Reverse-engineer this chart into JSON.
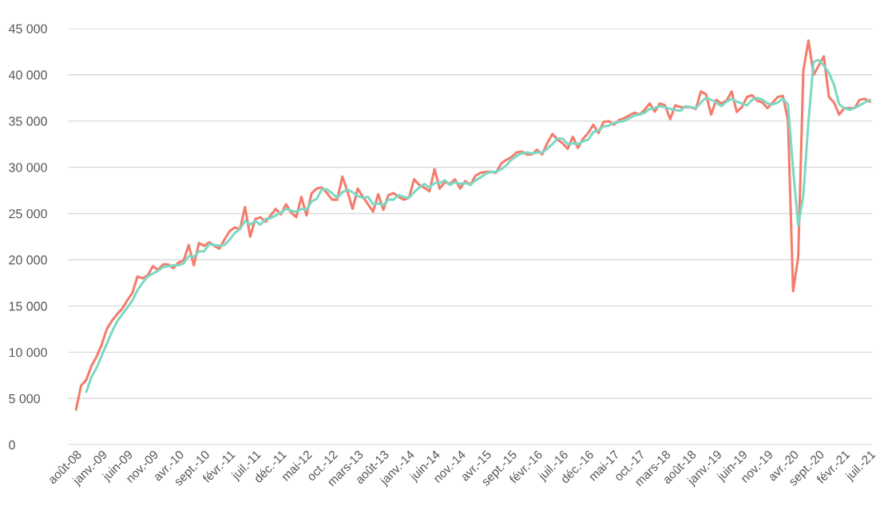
{
  "chart_data": {
    "type": "line",
    "categories": [
      "août-08",
      null,
      null,
      null,
      null,
      "janv.-09",
      null,
      null,
      null,
      null,
      "juin-09",
      null,
      null,
      null,
      null,
      "nov.-09",
      null,
      null,
      null,
      null,
      "avr.-10",
      null,
      null,
      null,
      null,
      "sept.-10",
      null,
      null,
      null,
      null,
      "févr.-11",
      null,
      null,
      null,
      null,
      "juil.-11",
      null,
      null,
      null,
      null,
      "déc.-11",
      null,
      null,
      null,
      null,
      "mai-12",
      null,
      null,
      null,
      null,
      "oct.-12",
      null,
      null,
      null,
      null,
      "mars-13",
      null,
      null,
      null,
      null,
      "août-13",
      null,
      null,
      null,
      null,
      "janv.-14",
      null,
      null,
      null,
      null,
      "juin-14",
      null,
      null,
      null,
      null,
      "nov.-14",
      null,
      null,
      null,
      null,
      "avr.-15",
      null,
      null,
      null,
      null,
      "sept.-15",
      null,
      null,
      null,
      null,
      "févr.-16",
      null,
      null,
      null,
      null,
      "juil.-16",
      null,
      null,
      null,
      null,
      "déc.-16",
      null,
      null,
      null,
      null,
      "mai-17",
      null,
      null,
      null,
      null,
      "oct.-17",
      null,
      null,
      null,
      null,
      "mars-18",
      null,
      null,
      null,
      null,
      "août-18",
      null,
      null,
      null,
      null,
      "janv.-19",
      null,
      null,
      null,
      null,
      "juin-19",
      null,
      null,
      null,
      null,
      "nov.-19",
      null,
      null,
      null,
      null,
      "avr.-20",
      null,
      null,
      null,
      null,
      "sept.-20",
      null,
      null,
      null,
      null,
      "févr.-21",
      null,
      null,
      null,
      null,
      "juil.-21"
    ],
    "series": [
      {
        "color": "#f47c6c",
        "values": [
          3800,
          6400,
          7000,
          8500,
          9500,
          10800,
          12500,
          13400,
          14100,
          14700,
          15600,
          16400,
          18200,
          18000,
          18300,
          19300,
          18900,
          19500,
          19500,
          19100,
          19700,
          19900,
          21600,
          19400,
          21800,
          21500,
          21900,
          21500,
          21200,
          22200,
          23100,
          23500,
          23300,
          25700,
          22500,
          24400,
          24600,
          24100,
          24800,
          25500,
          24900,
          26000,
          25100,
          24600,
          26800,
          24800,
          27200,
          27700,
          27800,
          27200,
          26500,
          26500,
          29000,
          27400,
          25500,
          27700,
          26800,
          26000,
          25200,
          27100,
          25400,
          27000,
          27200,
          26800,
          26500,
          26700,
          28700,
          28100,
          27800,
          27400,
          29800,
          27700,
          28400,
          28200,
          28700,
          27700,
          28500,
          28100,
          29100,
          29400,
          29500,
          29500,
          29400,
          30400,
          30800,
          31100,
          31600,
          31700,
          31400,
          31400,
          31900,
          31400,
          32600,
          33600,
          33000,
          32600,
          32000,
          33300,
          32100,
          33100,
          33700,
          34600,
          33700,
          34900,
          35000,
          34600,
          35100,
          35300,
          35600,
          35900,
          35700,
          36200,
          36900,
          36000,
          36900,
          36700,
          35200,
          36700,
          36500,
          36500,
          36500,
          36300,
          38200,
          37900,
          35700,
          37300,
          36900,
          37200,
          38200,
          36000,
          36500,
          37600,
          37800,
          37200,
          37000,
          36400,
          37000,
          37600,
          37700,
          35100,
          16600,
          20300,
          40500,
          43700,
          40000,
          41000,
          42000,
          37600,
          37000,
          35700,
          36400,
          36400,
          36400,
          37300,
          37400,
          37100
        ]
      },
      {
        "color": "#7dd8c4",
        "values": [
          null,
          null,
          5700,
          7300,
          8300,
          9600,
          10900,
          12200,
          13300,
          14100,
          14800,
          15600,
          16700,
          17500,
          18200,
          18500,
          18800,
          19200,
          19300,
          19400,
          19400,
          19600,
          20400,
          20300,
          20900,
          20900,
          21700,
          21600,
          21500,
          21600,
          22200,
          22900,
          23300,
          24200,
          23800,
          24200,
          23800,
          24400,
          24500,
          24800,
          25100,
          25500,
          25300,
          25200,
          25500,
          25400,
          26300,
          26600,
          27600,
          27600,
          27200,
          26700,
          27300,
          27600,
          27300,
          26900,
          26700,
          26800,
          26000,
          26100,
          25900,
          26500,
          26500,
          27000,
          26800,
          26700,
          27300,
          27800,
          28200,
          27800,
          28300,
          28300,
          28600,
          28100,
          28400,
          28200,
          28300,
          28100,
          28600,
          28900,
          29300,
          29500,
          29500,
          29800,
          30200,
          30800,
          31200,
          31500,
          31600,
          31500,
          31600,
          31600,
          32000,
          32500,
          33100,
          33100,
          32500,
          32600,
          32500,
          32800,
          33000,
          33800,
          34000,
          34400,
          34500,
          34800,
          34900,
          35000,
          35300,
          35600,
          35700,
          35900,
          36300,
          36400,
          36600,
          36500,
          36300,
          36200,
          36100,
          36600,
          36500,
          36400,
          37000,
          37500,
          37300,
          37000,
          36600,
          37100,
          37400,
          37100,
          36900,
          36700,
          37300,
          37500,
          37300,
          36900,
          36800,
          37000,
          37400,
          36800,
          29800,
          23700,
          27000,
          35000,
          41400,
          41600,
          41000,
          40200,
          38900,
          36800,
          36400,
          36200,
          36400,
          36700,
          37000,
          37300
        ]
      }
    ],
    "ylim": [
      0,
      45000
    ],
    "yticks": [
      0,
      {
        "value": 5000,
        "label": "5 000"
      },
      {
        "value": 10000,
        "label": "10 000"
      },
      {
        "value": 15000,
        "label": "15 000"
      },
      {
        "value": 20000,
        "label": "20 000"
      },
      {
        "value": 25000,
        "label": "25 000"
      },
      {
        "value": 30000,
        "label": "30 000"
      },
      {
        "value": 35000,
        "label": "35 000"
      },
      {
        "value": 40000,
        "label": "40 000"
      },
      {
        "value": 45000,
        "label": "45 000"
      }
    ],
    "grid": "y"
  }
}
